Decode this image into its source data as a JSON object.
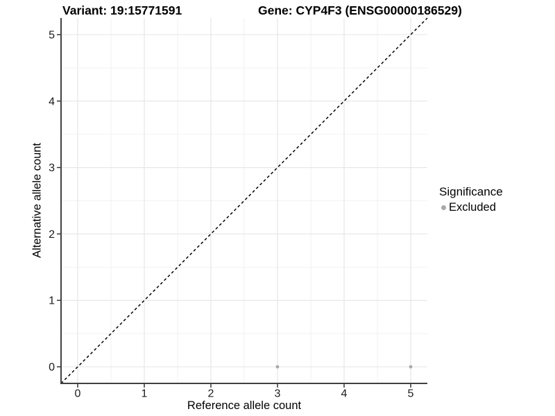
{
  "title": {
    "variant": "Variant: 19:15771591",
    "gene": "Gene: CYP4F3 (ENSG00000186529)"
  },
  "chart_data": {
    "type": "scatter",
    "xlabel": "Reference allele count",
    "ylabel": "Alternative allele count",
    "xlim": [
      -0.25,
      5.25
    ],
    "ylim": [
      -0.25,
      5.25
    ],
    "xticks": [
      0,
      1,
      2,
      3,
      4,
      5
    ],
    "yticks": [
      0,
      1,
      2,
      3,
      4,
      5
    ],
    "xticks_minor": [
      0.5,
      1.5,
      2.5,
      3.5,
      4.5
    ],
    "yticks_minor": [
      0.5,
      1.5,
      2.5,
      3.5,
      4.5
    ],
    "grid": true,
    "series": [
      {
        "name": "Excluded",
        "color": "#a8a8a8",
        "points": [
          {
            "x": 3,
            "y": 0
          },
          {
            "x": 5,
            "y": 0
          }
        ]
      }
    ],
    "reference_line": {
      "type": "identity",
      "style": "dashed",
      "color": "#000000",
      "from": [
        -0.25,
        -0.25
      ],
      "to": [
        5.25,
        5.25
      ]
    },
    "legend": {
      "title": "Significance",
      "position": "right",
      "items": [
        {
          "label": "Excluded",
          "color": "#a8a8a8"
        }
      ]
    },
    "style": {
      "background": "#ffffff",
      "grid_major_color": "#e7e7e7",
      "grid_minor_color": "#f2f2f2",
      "axis_color": "#404040",
      "tick_color": "#333333",
      "text_color": "#1a1a1a"
    }
  }
}
